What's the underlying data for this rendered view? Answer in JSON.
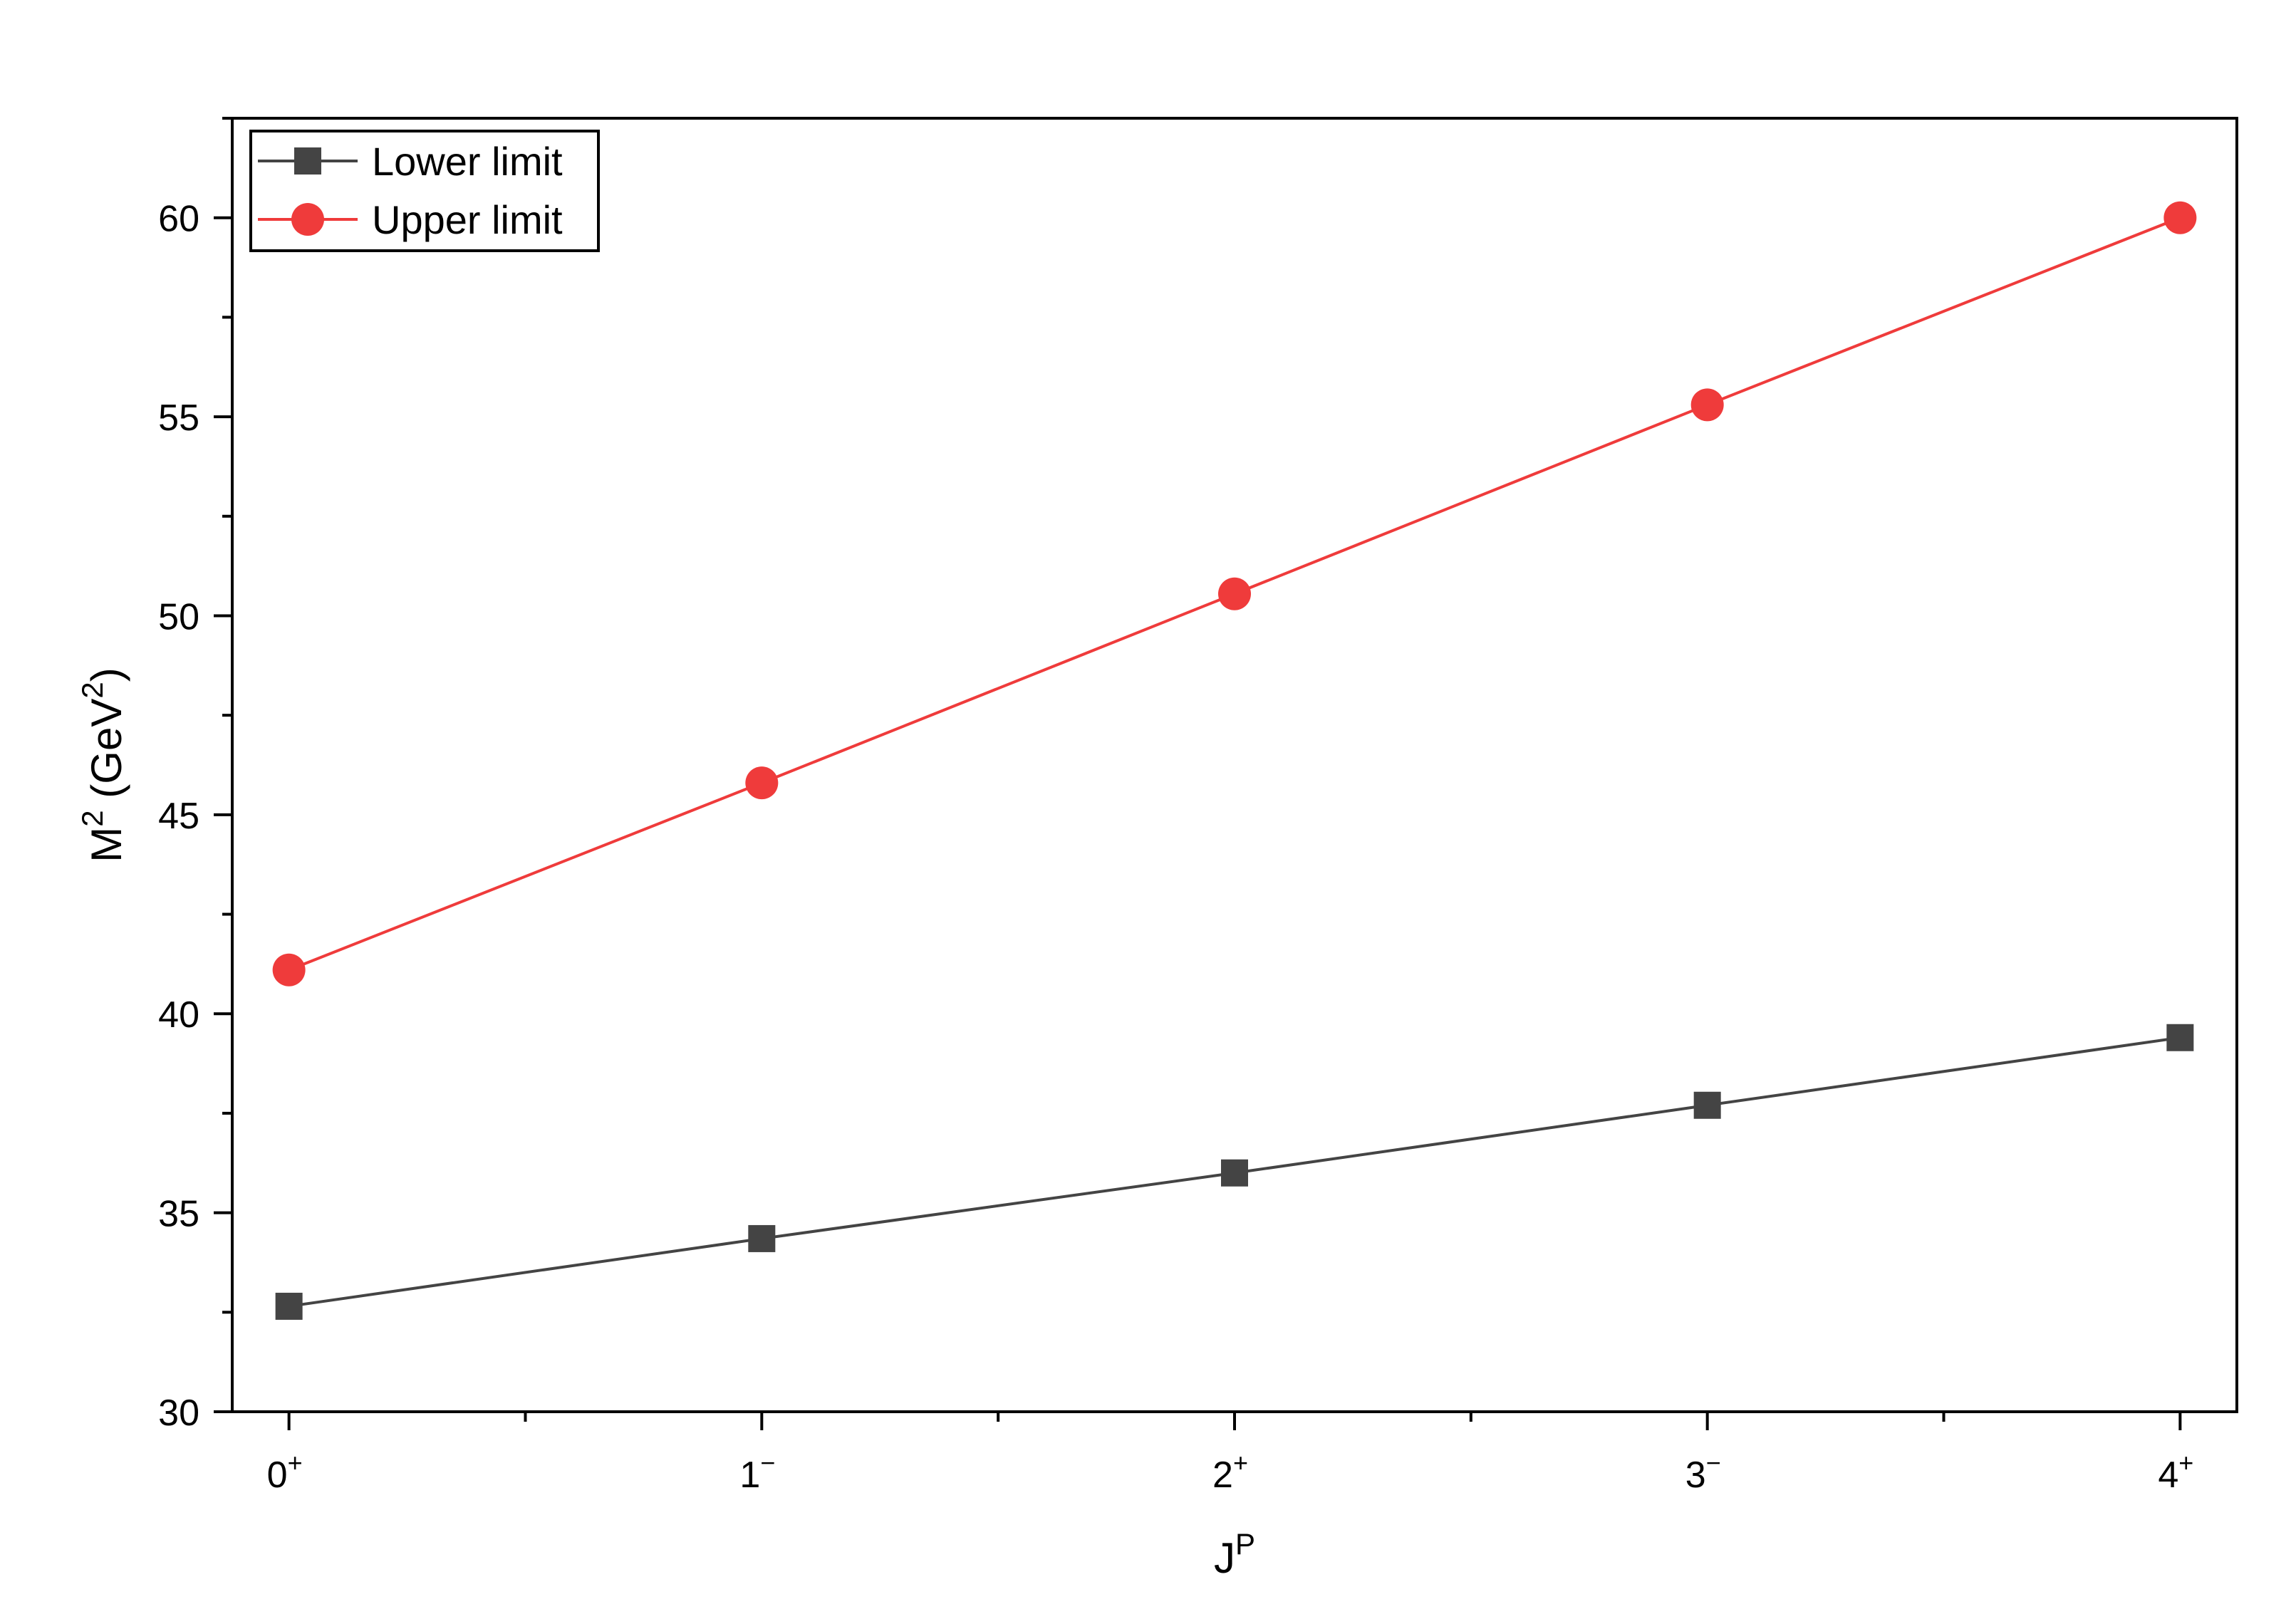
{
  "chart_data": {
    "type": "line",
    "title": "",
    "xlabel": {
      "base": "J",
      "sup": "P"
    },
    "ylabel": {
      "p1": "M",
      "sup1": "2",
      "p2": " (GeV",
      "sup2": "2",
      "p3": ")"
    },
    "categories": [
      {
        "base": "0",
        "sup": "+"
      },
      {
        "base": "1",
        "sup": "−"
      },
      {
        "base": "2",
        "sup": "+"
      },
      {
        "base": "3",
        "sup": "−"
      },
      {
        "base": "4",
        "sup": "+"
      }
    ],
    "x": [
      0,
      1,
      2,
      3,
      4
    ],
    "xlim": [
      -0.12,
      4.12
    ],
    "ylim": [
      30,
      62.5
    ],
    "yticks": [
      30,
      35,
      40,
      45,
      50,
      55,
      60
    ],
    "yminor": [
      32.5,
      37.5,
      42.5,
      47.5,
      52.5,
      57.5,
      62.5
    ],
    "xminor": [
      0.5,
      1.5,
      2.5,
      3.5
    ],
    "series": [
      {
        "name": "Lower limit",
        "marker": "square",
        "color": "#444444",
        "values": [
          32.65,
          34.35,
          36.0,
          37.7,
          39.4
        ]
      },
      {
        "name": "Upper limit",
        "marker": "circle",
        "color": "#ef3b3b",
        "values": [
          41.1,
          45.8,
          50.55,
          55.3,
          60.0
        ]
      }
    ],
    "legend": "top-left",
    "grid": false
  }
}
